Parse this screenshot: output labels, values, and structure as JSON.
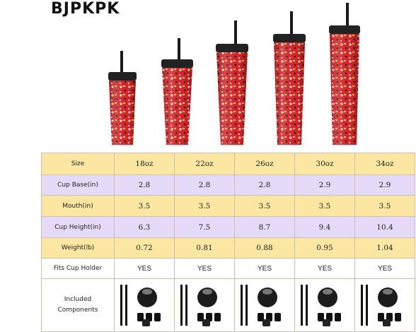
{
  "brand": "BJPKPK",
  "table": {
    "rows": [
      {
        "label": "Size",
        "values": [
          "18oz",
          "22oz",
          "26oz",
          "30oz",
          "34oz"
        ]
      },
      {
        "label": "Cup Base(in)",
        "values": [
          "2.8",
          "2.8",
          "2.8",
          "2.9",
          "2.9"
        ]
      },
      {
        "label": "Mouth(in)",
        "values": [
          "3.5",
          "3.5",
          "3.5",
          "3.5",
          "3.5"
        ]
      },
      {
        "label": "Cup Height(in)",
        "values": [
          "6.3",
          "7.5",
          "8.7",
          "9.4",
          "10.4"
        ]
      },
      {
        "label": "Weight(lb)",
        "values": [
          "0.72",
          "0.81",
          "0.88",
          "0.95",
          "1.04"
        ]
      },
      {
        "label": "Fits Cup Holder",
        "values": [
          "YES",
          "YES",
          "YES",
          "YES",
          "YES"
        ]
      }
    ],
    "components_label_line1": "Included",
    "components_label_line2": "Components"
  },
  "colors": {
    "cup_red": "#d8262b",
    "lid_black": "#222222",
    "row_gold": "#fbe7a2",
    "row_lavender": "#e5daf7"
  }
}
